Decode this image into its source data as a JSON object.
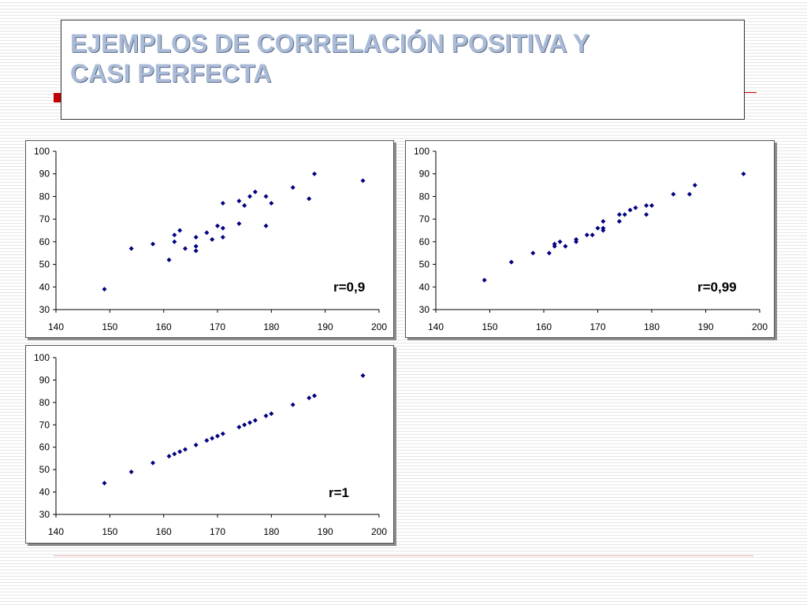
{
  "slide": {
    "title": "EJEMPLOS DE CORRELACIÓN POSITIVA Y\nCASI PERFECTA",
    "title_color": "#aabbd8",
    "accent_color": "#c00000"
  },
  "chart_data": [
    {
      "type": "scatter",
      "annotation": "r=0,9",
      "xlim": [
        140,
        200
      ],
      "ylim": [
        30,
        100
      ],
      "xticks": [
        140,
        150,
        160,
        170,
        180,
        190,
        200
      ],
      "yticks": [
        30,
        40,
        50,
        60,
        70,
        80,
        90,
        100
      ],
      "grid": false,
      "marker_color": "#000080",
      "points": [
        [
          149,
          39
        ],
        [
          154,
          57
        ],
        [
          158,
          59
        ],
        [
          161,
          52
        ],
        [
          162,
          60
        ],
        [
          162,
          63
        ],
        [
          163,
          65
        ],
        [
          164,
          57
        ],
        [
          166,
          56
        ],
        [
          166,
          58
        ],
        [
          166,
          62
        ],
        [
          168,
          64
        ],
        [
          169,
          61
        ],
        [
          170,
          67
        ],
        [
          171,
          62
        ],
        [
          171,
          66
        ],
        [
          171,
          77
        ],
        [
          174,
          68
        ],
        [
          174,
          78
        ],
        [
          175,
          76
        ],
        [
          176,
          80
        ],
        [
          177,
          82
        ],
        [
          179,
          67
        ],
        [
          179,
          80
        ],
        [
          180,
          77
        ],
        [
          184,
          84
        ],
        [
          187,
          79
        ],
        [
          188,
          90
        ],
        [
          197,
          87
        ]
      ]
    },
    {
      "type": "scatter",
      "annotation": "r=0,99",
      "xlim": [
        140,
        200
      ],
      "ylim": [
        30,
        100
      ],
      "xticks": [
        140,
        150,
        160,
        170,
        180,
        190,
        200
      ],
      "yticks": [
        30,
        40,
        50,
        60,
        70,
        80,
        90,
        100
      ],
      "grid": false,
      "marker_color": "#000080",
      "points": [
        [
          149,
          43
        ],
        [
          154,
          51
        ],
        [
          158,
          55
        ],
        [
          161,
          55
        ],
        [
          162,
          58
        ],
        [
          162,
          59
        ],
        [
          163,
          60
        ],
        [
          164,
          58
        ],
        [
          166,
          60
        ],
        [
          166,
          61
        ],
        [
          168,
          63
        ],
        [
          169,
          63
        ],
        [
          170,
          66
        ],
        [
          171,
          65
        ],
        [
          171,
          66
        ],
        [
          171,
          69
        ],
        [
          174,
          69
        ],
        [
          174,
          72
        ],
        [
          175,
          72
        ],
        [
          176,
          74
        ],
        [
          177,
          75
        ],
        [
          179,
          72
        ],
        [
          179,
          76
        ],
        [
          180,
          76
        ],
        [
          184,
          81
        ],
        [
          187,
          81
        ],
        [
          188,
          85
        ],
        [
          197,
          90
        ]
      ]
    },
    {
      "type": "scatter",
      "annotation": "r=1",
      "xlim": [
        140,
        200
      ],
      "ylim": [
        30,
        100
      ],
      "xticks": [
        140,
        150,
        160,
        170,
        180,
        190,
        200
      ],
      "yticks": [
        30,
        40,
        50,
        60,
        70,
        80,
        90,
        100
      ],
      "grid": false,
      "marker_color": "#000080",
      "points": [
        [
          149,
          44
        ],
        [
          154,
          49
        ],
        [
          158,
          53
        ],
        [
          161,
          56
        ],
        [
          162,
          57
        ],
        [
          163,
          58
        ],
        [
          164,
          59
        ],
        [
          166,
          61
        ],
        [
          168,
          63
        ],
        [
          169,
          64
        ],
        [
          170,
          65
        ],
        [
          171,
          66
        ],
        [
          174,
          69
        ],
        [
          175,
          70
        ],
        [
          176,
          71
        ],
        [
          177,
          72
        ],
        [
          179,
          74
        ],
        [
          180,
          75
        ],
        [
          184,
          79
        ],
        [
          187,
          82
        ],
        [
          188,
          83
        ],
        [
          197,
          92
        ]
      ]
    }
  ]
}
